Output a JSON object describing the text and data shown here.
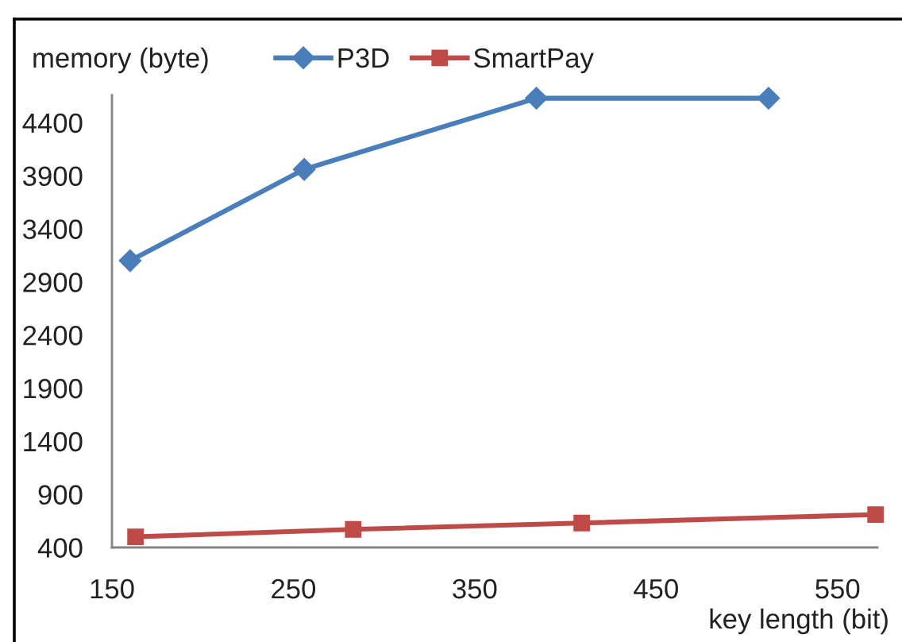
{
  "chart_data": {
    "type": "line",
    "xlabel": "key length (bit)",
    "ylabel": "memory (byte)",
    "xlim": [
      150,
      572
    ],
    "xticks": [
      150,
      250,
      350,
      450,
      550
    ],
    "ylim": [
      400,
      4660
    ],
    "yticks": [
      400,
      900,
      1400,
      1900,
      2400,
      2900,
      3400,
      3900,
      4400
    ],
    "grid": false,
    "legend": "top",
    "line_style": "solid",
    "series": [
      {
        "name": "P3D",
        "color": "#4a7ebb",
        "marker": "diamond",
        "x": [
          160,
          256,
          384,
          512
        ],
        "values": [
          3100,
          3960,
          4630,
          4630
        ]
      },
      {
        "name": "SmartPay",
        "color": "#be4b48",
        "marker": "square",
        "x": [
          163,
          283,
          409,
          571
        ],
        "values": [
          500,
          570,
          630,
          710
        ]
      }
    ]
  }
}
